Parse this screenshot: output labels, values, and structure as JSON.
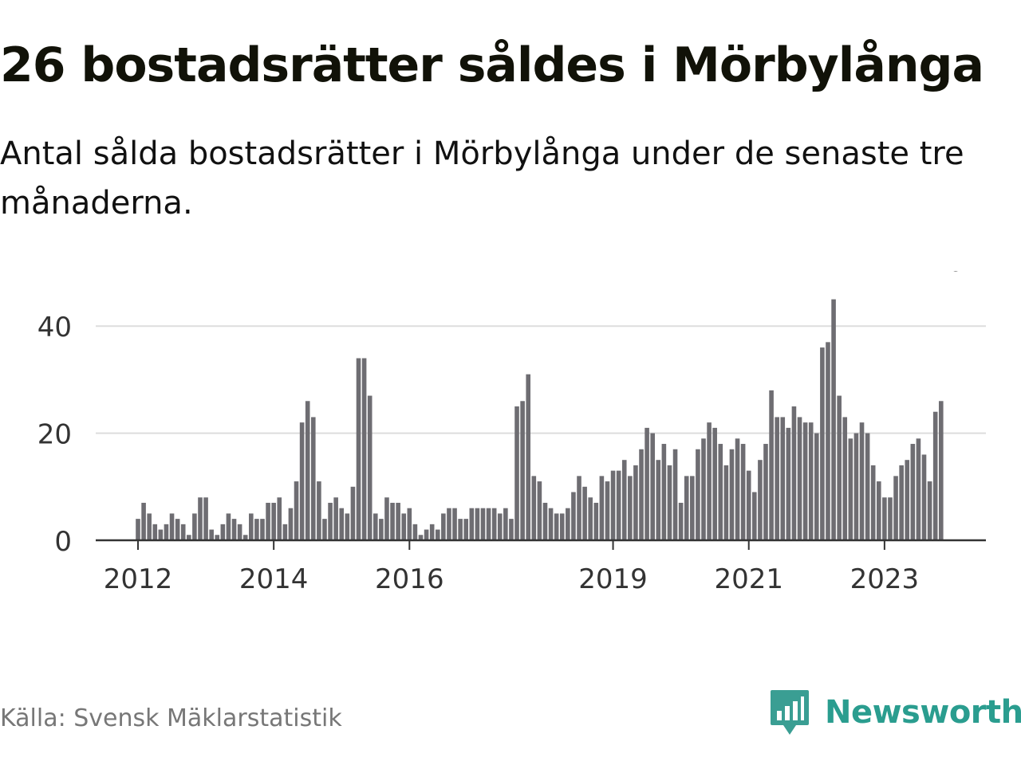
{
  "title": "26 bostadsrätter såldes i Mörbylånga",
  "subtitle": "Antal sålda bostadsrätter i Mörbylånga under de senaste tre månaderna.",
  "source": "Källa: Svensk Mäklarstatistik",
  "brand": "Newsworthy",
  "colors": {
    "bar": "#6e6d72",
    "highlight": "#1fa192",
    "grid": "#dddddd",
    "axis": "#333333",
    "brand": "#2a9d8f"
  },
  "chart_data": {
    "type": "bar",
    "title": "26 bostadsrätter såldes i Mörbylånga",
    "xlabel": "",
    "ylabel": "",
    "ylim": [
      0,
      46
    ],
    "yticks": [
      0,
      20,
      40
    ],
    "grid": true,
    "start": "2012-01",
    "xtick_labels": [
      {
        "label": "2012",
        "index": 0
      },
      {
        "label": "2014",
        "index": 24
      },
      {
        "label": "2016",
        "index": 48
      },
      {
        "label": "2019",
        "index": 84
      },
      {
        "label": "2021",
        "index": 108
      },
      {
        "label": "2023",
        "index": 132
      }
    ],
    "values": [
      4,
      7,
      5,
      3,
      2,
      3,
      5,
      4,
      3,
      1,
      5,
      8,
      8,
      2,
      1,
      3,
      5,
      4,
      3,
      1,
      5,
      4,
      4,
      7,
      7,
      8,
      3,
      6,
      11,
      22,
      26,
      23,
      11,
      4,
      7,
      8,
      6,
      5,
      10,
      34,
      34,
      27,
      5,
      4,
      8,
      7,
      7,
      5,
      6,
      3,
      1,
      2,
      3,
      2,
      5,
      6,
      6,
      4,
      4,
      6,
      6,
      6,
      6,
      6,
      5,
      6,
      4,
      25,
      26,
      31,
      12,
      11,
      7,
      6,
      5,
      5,
      6,
      9,
      12,
      10,
      8,
      7,
      12,
      11,
      13,
      13,
      15,
      12,
      14,
      17,
      21,
      20,
      15,
      18,
      14,
      17,
      7,
      12,
      12,
      17,
      19,
      22,
      21,
      18,
      14,
      17,
      19,
      18,
      13,
      9,
      15,
      18,
      28,
      23,
      23,
      21,
      25,
      23,
      22,
      22,
      20,
      36,
      37,
      45,
      27,
      23,
      19,
      20,
      22,
      20,
      14,
      11,
      8,
      8,
      12,
      14,
      15,
      18,
      19,
      16,
      11,
      24,
      26
    ],
    "highlight_label": "26",
    "highlight_index": 143
  }
}
